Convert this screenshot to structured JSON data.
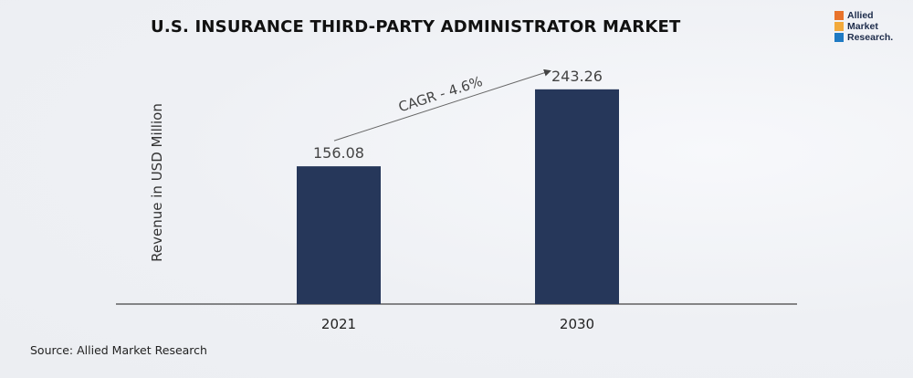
{
  "chart_data": {
    "type": "bar",
    "title": "U.S. INSURANCE THIRD-PARTY ADMINISTRATOR MARKET",
    "xlabel": "",
    "ylabel": "Revenue in USD Million",
    "categories": [
      "2021",
      "2030"
    ],
    "values": [
      156.08,
      243.26
    ],
    "value_labels": [
      "156.08",
      "243.26"
    ],
    "ylim": [
      0,
      270
    ],
    "grid": false,
    "bar_color": "#26375a",
    "annotation": "CAGR - 4.6%"
  },
  "source": "Source: Allied Market Research",
  "logo": {
    "lines": [
      "Allied",
      "Market",
      "Research."
    ],
    "colors": [
      "#e8732b",
      "#f2a93b",
      "#1f7ac3"
    ]
  }
}
